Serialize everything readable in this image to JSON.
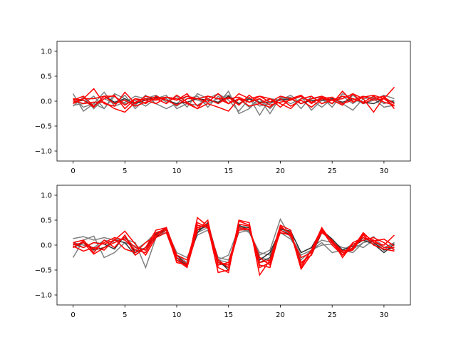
{
  "colors": {
    "figure_bg": "#ffffff",
    "axes_frame": "#000000",
    "noise_series": "#808080",
    "signal_series": "#ff0000",
    "mean_series": "#333333"
  },
  "chart_data": [
    {
      "type": "line",
      "grid": false,
      "xlim": [
        -1.55,
        32.55
      ],
      "ylim": [
        -1.2,
        1.2
      ],
      "x_ticks": [
        0,
        5,
        10,
        15,
        20,
        25,
        30
      ],
      "y_ticks": [
        1.0,
        0.5,
        0.0,
        -0.5,
        -1.0
      ],
      "x_tick_labels": [
        "0",
        "5",
        "10",
        "15",
        "20",
        "25",
        "30"
      ],
      "y_tick_labels": [
        "1.0",
        "0.5",
        "0.0",
        "−0.5",
        "−1.0"
      ],
      "x": [
        0,
        1,
        2,
        3,
        4,
        5,
        6,
        7,
        8,
        9,
        10,
        11,
        12,
        13,
        14,
        15,
        16,
        17,
        18,
        19,
        20,
        21,
        22,
        23,
        24,
        25,
        26,
        27,
        28,
        29,
        30,
        31
      ],
      "series": [
        {
          "color": "gray",
          "values": [
            0.15,
            -0.2,
            -0.05,
            -0.15,
            0.1,
            -0.05,
            0.02,
            -0.1,
            0.05,
            0.12,
            -0.15,
            -0.05,
            -0.08,
            0.05,
            0.15,
            0.02,
            -0.2,
            0.05,
            -0.1,
            -0.05,
            0.05,
            0.08,
            -0.15,
            0.1,
            -0.05,
            0.05,
            -0.05,
            -0.18,
            0.05,
            0.08,
            -0.05,
            0.02
          ]
        },
        {
          "color": "gray",
          "values": [
            -0.08,
            -0.05,
            0.1,
            -0.15,
            0.15,
            0.05,
            -0.08,
            0.12,
            -0.05,
            -0.15,
            -0.05,
            0.1,
            0.02,
            -0.05,
            0.05,
            0.12,
            -0.05,
            0.08,
            -0.28,
            0.05,
            0.02,
            0.12,
            -0.05,
            0.05,
            0.08,
            -0.12,
            0.15,
            0.05,
            -0.05,
            0.02,
            0.12,
            0.05
          ]
        },
        {
          "color": "gray",
          "values": [
            0.05,
            -0.12,
            -0.05,
            0.18,
            -0.1,
            -0.02,
            0.1,
            0.05,
            0.12,
            -0.02,
            0.1,
            -0.12,
            0.15,
            0.05,
            -0.05,
            0.2,
            -0.25,
            -0.15,
            0.05,
            -0.25,
            0.08,
            0.02,
            0.1,
            -0.18,
            0.02,
            -0.05,
            0.1,
            -0.05,
            0.1,
            0.05,
            -0.12,
            -0.08
          ]
        },
        {
          "color": "gray",
          "values": [
            -0.1,
            0.08,
            -0.15,
            0.05,
            -0.05,
            0.12,
            -0.15,
            0.05,
            0.08,
            0.05,
            -0.1,
            0.05,
            0.1,
            -0.12,
            0.1,
            -0.05,
            0.05,
            -0.12,
            0.05,
            -0.15,
            0.05,
            -0.05,
            0.05,
            0.02,
            -0.12,
            0.05,
            -0.08,
            0.12,
            -0.05,
            0.02,
            0.05,
            -0.05
          ]
        },
        {
          "color": "dark",
          "values": [
            -0.02,
            0.02,
            -0.1,
            0.1,
            -0.02,
            0.05,
            -0.05,
            0.02,
            0.08,
            0.02,
            -0.05,
            -0.02,
            0.05,
            0.02,
            -0.02,
            0.1,
            -0.05,
            0.05,
            -0.02,
            -0.02,
            0.02,
            0.05,
            -0.05,
            0.02,
            0.02,
            0.05,
            -0.02,
            0.05,
            -0.02,
            -0.05,
            0.05,
            -0.02
          ]
        },
        {
          "color": "red",
          "values": [
            0.02,
            0.1,
            -0.1,
            0.05,
            0.12,
            -0.15,
            0.05,
            0.02,
            -0.05,
            0.08,
            0.02,
            0.15,
            -0.1,
            0.05,
            -0.05,
            0.08,
            -0.08,
            0.12,
            -0.05,
            0.05,
            -0.12,
            0.05,
            0.12,
            -0.05,
            0.08,
            -0.05,
            0.2,
            -0.02,
            0.08,
            0.12,
            0.05,
            0.28
          ]
        },
        {
          "color": "red",
          "values": [
            -0.05,
            0.05,
            0.25,
            -0.05,
            -0.1,
            0.18,
            -0.05,
            0.1,
            0.05,
            -0.05,
            0.12,
            -0.02,
            -0.15,
            0.1,
            0.05,
            -0.05,
            0.05,
            -0.02,
            0.1,
            0.05,
            -0.05,
            -0.15,
            0.05,
            0.1,
            -0.05,
            0.02,
            0.05,
            0.15,
            -0.05,
            0.05,
            0.1,
            -0.15
          ]
        },
        {
          "color": "red",
          "values": [
            0.05,
            0.02,
            -0.12,
            0.1,
            0.1,
            -0.08,
            0.05,
            -0.05,
            0.1,
            0.02,
            -0.08,
            0.05,
            0.05,
            -0.02,
            0.15,
            -0.05,
            0.15,
            0.05,
            0.1,
            -0.02,
            0.1,
            0.05,
            -0.05,
            0.05,
            0.1,
            0.02,
            -0.08,
            0.15,
            0.05,
            -0.22,
            0.08,
            -0.05
          ]
        },
        {
          "color": "red",
          "values": [
            -0.02,
            0.05,
            0.05,
            0.1,
            -0.05,
            0.02,
            -0.1,
            -0.02,
            0.05,
            0.08,
            0.05,
            -0.05,
            -0.15,
            -0.05,
            -0.12,
            -0.2,
            0.05,
            -0.1,
            -0.05,
            -0.12,
            0.05,
            -0.1,
            0.02,
            -0.12,
            0.05,
            0.08,
            -0.05,
            0.02,
            0.1,
            0.02,
            0.05,
            -0.1
          ]
        },
        {
          "color": "red",
          "values": [
            0.02,
            -0.05,
            -0.02,
            -0.02,
            -0.15,
            -0.22,
            -0.02,
            0.05,
            0.02,
            0.08,
            0.02,
            0.1,
            0.05,
            0.1,
            0.05,
            0.05,
            0.08,
            -0.02,
            0.05,
            -0.08,
            -0.02,
            0.02,
            0.1,
            -0.02,
            0.05,
            0.02,
            0.1,
            0.05,
            -0.02,
            0.1,
            -0.02,
            -0.08
          ]
        }
      ]
    },
    {
      "type": "line",
      "grid": false,
      "xlim": [
        -1.55,
        32.55
      ],
      "ylim": [
        -1.2,
        1.2
      ],
      "x_ticks": [
        0,
        5,
        10,
        15,
        20,
        25,
        30
      ],
      "y_ticks": [
        1.0,
        0.5,
        0.0,
        -0.5,
        -1.0
      ],
      "x_tick_labels": [
        "0",
        "5",
        "10",
        "15",
        "20",
        "25",
        "30"
      ],
      "y_tick_labels": [
        "1.0",
        "0.5",
        "0.0",
        "−0.5",
        "−1.0"
      ],
      "x": [
        0,
        1,
        2,
        3,
        4,
        5,
        6,
        7,
        8,
        9,
        10,
        11,
        12,
        13,
        14,
        15,
        16,
        17,
        18,
        19,
        20,
        21,
        22,
        23,
        24,
        25,
        26,
        27,
        28,
        29,
        30,
        31
      ],
      "series": [
        {
          "color": "gray",
          "values": [
            0.13,
            0.17,
            0.1,
            0.15,
            0.1,
            0.12,
            0.05,
            -0.45,
            0.15,
            0.3,
            -0.2,
            -0.35,
            0.25,
            0.35,
            -0.25,
            -0.3,
            0.25,
            0.3,
            -0.2,
            -0.1,
            0.52,
            0.15,
            -0.15,
            -0.05,
            0.1,
            0.05,
            -0.05,
            -0.08,
            0.05,
            0.17,
            -0.05,
            0.02
          ]
        },
        {
          "color": "gray",
          "values": [
            -0.25,
            0.1,
            0.18,
            -0.25,
            -0.15,
            0.05,
            -0.02,
            -0.1,
            0.2,
            0.25,
            -0.3,
            -0.35,
            0.3,
            0.38,
            -0.3,
            -0.35,
            0.32,
            0.28,
            -0.25,
            -0.3,
            0.35,
            0.2,
            -0.3,
            -0.1,
            0.05,
            -0.15,
            -0.1,
            0.02,
            -0.05,
            0.1,
            -0.1,
            0.05
          ]
        },
        {
          "color": "gray",
          "values": [
            0.05,
            0.0,
            -0.05,
            0.1,
            0.05,
            0.15,
            -0.1,
            0.05,
            0.25,
            0.3,
            -0.15,
            -0.25,
            0.2,
            0.3,
            -0.3,
            -0.2,
            0.35,
            0.25,
            -0.15,
            -0.2,
            0.25,
            0.12,
            -0.2,
            -0.1,
            0.0,
            0.02,
            -0.1,
            -0.15,
            0.05,
            0.1,
            -0.05,
            0.05
          ]
        },
        {
          "color": "dark",
          "values": [
            -0.05,
            0.05,
            -0.1,
            -0.05,
            0.1,
            0.05,
            -0.2,
            -0.05,
            0.22,
            0.35,
            -0.25,
            -0.42,
            0.3,
            0.4,
            -0.35,
            -0.45,
            0.38,
            0.35,
            -0.35,
            -0.25,
            0.32,
            0.28,
            -0.15,
            -0.05,
            0.3,
            0.12,
            -0.1,
            -0.02,
            0.1,
            0.02,
            -0.15,
            0.02
          ]
        },
        {
          "color": "dark",
          "values": [
            0.02,
            -0.05,
            0.05,
            0.02,
            -0.08,
            0.2,
            -0.15,
            -0.05,
            0.15,
            0.35,
            -0.2,
            -0.4,
            0.25,
            0.45,
            -0.3,
            -0.5,
            0.4,
            0.3,
            -0.3,
            -0.15,
            0.3,
            0.2,
            -0.35,
            -0.2,
            0.25,
            0.1,
            -0.2,
            -0.05,
            0.15,
            0.05,
            -0.1,
            -0.05
          ]
        },
        {
          "color": "red",
          "values": [
            0.05,
            -0.05,
            0.05,
            0.02,
            0.1,
            0.28,
            0.02,
            -0.2,
            0.15,
            0.25,
            -0.3,
            -0.42,
            0.55,
            0.38,
            -0.55,
            -0.5,
            0.5,
            0.45,
            -0.6,
            -0.3,
            0.4,
            0.3,
            -0.45,
            -0.1,
            0.35,
            0.05,
            -0.2,
            -0.05,
            0.25,
            0.05,
            0.0,
            0.2
          ]
        },
        {
          "color": "red",
          "values": [
            -0.05,
            0.08,
            -0.08,
            0.05,
            0.15,
            0.1,
            -0.1,
            -0.15,
            0.2,
            0.35,
            -0.3,
            -0.45,
            0.3,
            0.5,
            -0.45,
            -0.55,
            0.48,
            0.4,
            -0.45,
            -0.35,
            0.35,
            0.25,
            -0.48,
            -0.18,
            0.3,
            0.0,
            -0.2,
            0.05,
            0.15,
            0.1,
            -0.05,
            -0.05
          ]
        },
        {
          "color": "red",
          "values": [
            0.05,
            0.1,
            -0.15,
            0.1,
            -0.05,
            0.2,
            -0.2,
            -0.05,
            0.3,
            0.35,
            -0.2,
            -0.3,
            0.4,
            0.35,
            -0.35,
            -0.4,
            0.42,
            0.38,
            -0.4,
            -0.45,
            0.3,
            0.18,
            -0.25,
            -0.15,
            0.32,
            0.05,
            -0.15,
            -0.1,
            0.2,
            0.0,
            -0.08,
            -0.12
          ]
        },
        {
          "color": "red",
          "values": [
            -0.02,
            -0.12,
            -0.05,
            -0.1,
            0.12,
            -0.08,
            -0.15,
            0.05,
            0.18,
            0.3,
            -0.35,
            -0.4,
            0.35,
            0.42,
            -0.3,
            -0.45,
            0.3,
            0.32,
            -0.25,
            -0.4,
            0.38,
            0.22,
            -0.4,
            -0.1,
            0.25,
            0.1,
            -0.25,
            0.02,
            0.1,
            0.15,
            0.05,
            -0.1
          ]
        },
        {
          "color": "red",
          "values": [
            0.0,
            0.05,
            -0.18,
            -0.05,
            0.05,
            0.15,
            -0.05,
            -0.1,
            0.25,
            0.32,
            -0.25,
            -0.38,
            0.45,
            0.35,
            -0.4,
            -0.35,
            0.35,
            0.32,
            -0.35,
            -0.3,
            0.25,
            0.2,
            -0.35,
            -0.2,
            0.28,
            0.08,
            -0.12,
            -0.08,
            0.22,
            0.08,
            0.12,
            -0.02
          ]
        }
      ]
    }
  ]
}
